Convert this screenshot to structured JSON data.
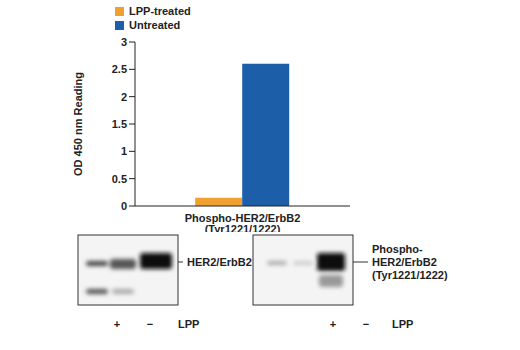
{
  "chart_data": {
    "type": "bar",
    "categories": [
      "Phospho-HER2/ErbB2 (Tyr1221/1222)"
    ],
    "series": [
      {
        "name": "LPP-treated",
        "color": "#f0a030",
        "values": [
          0.15
        ]
      },
      {
        "name": "Untreated",
        "color": "#1d5ea8",
        "values": [
          2.6
        ]
      }
    ],
    "y_label": "OD 450 nm Reading",
    "ylim": [
      0,
      3
    ],
    "yticks": [
      0,
      0.5,
      1,
      1.5,
      2,
      2.5,
      3
    ],
    "grid": false,
    "legend": "upper left"
  },
  "blots": [
    {
      "label": "HER2/ErbB2",
      "lanes": [
        "+",
        "−"
      ],
      "lane_title": "LPP"
    },
    {
      "label": "Phospho-HER2/ErbB2 (Tyr1221/1222)",
      "lanes": [
        "+",
        "−"
      ],
      "lane_title": "LPP"
    }
  ]
}
